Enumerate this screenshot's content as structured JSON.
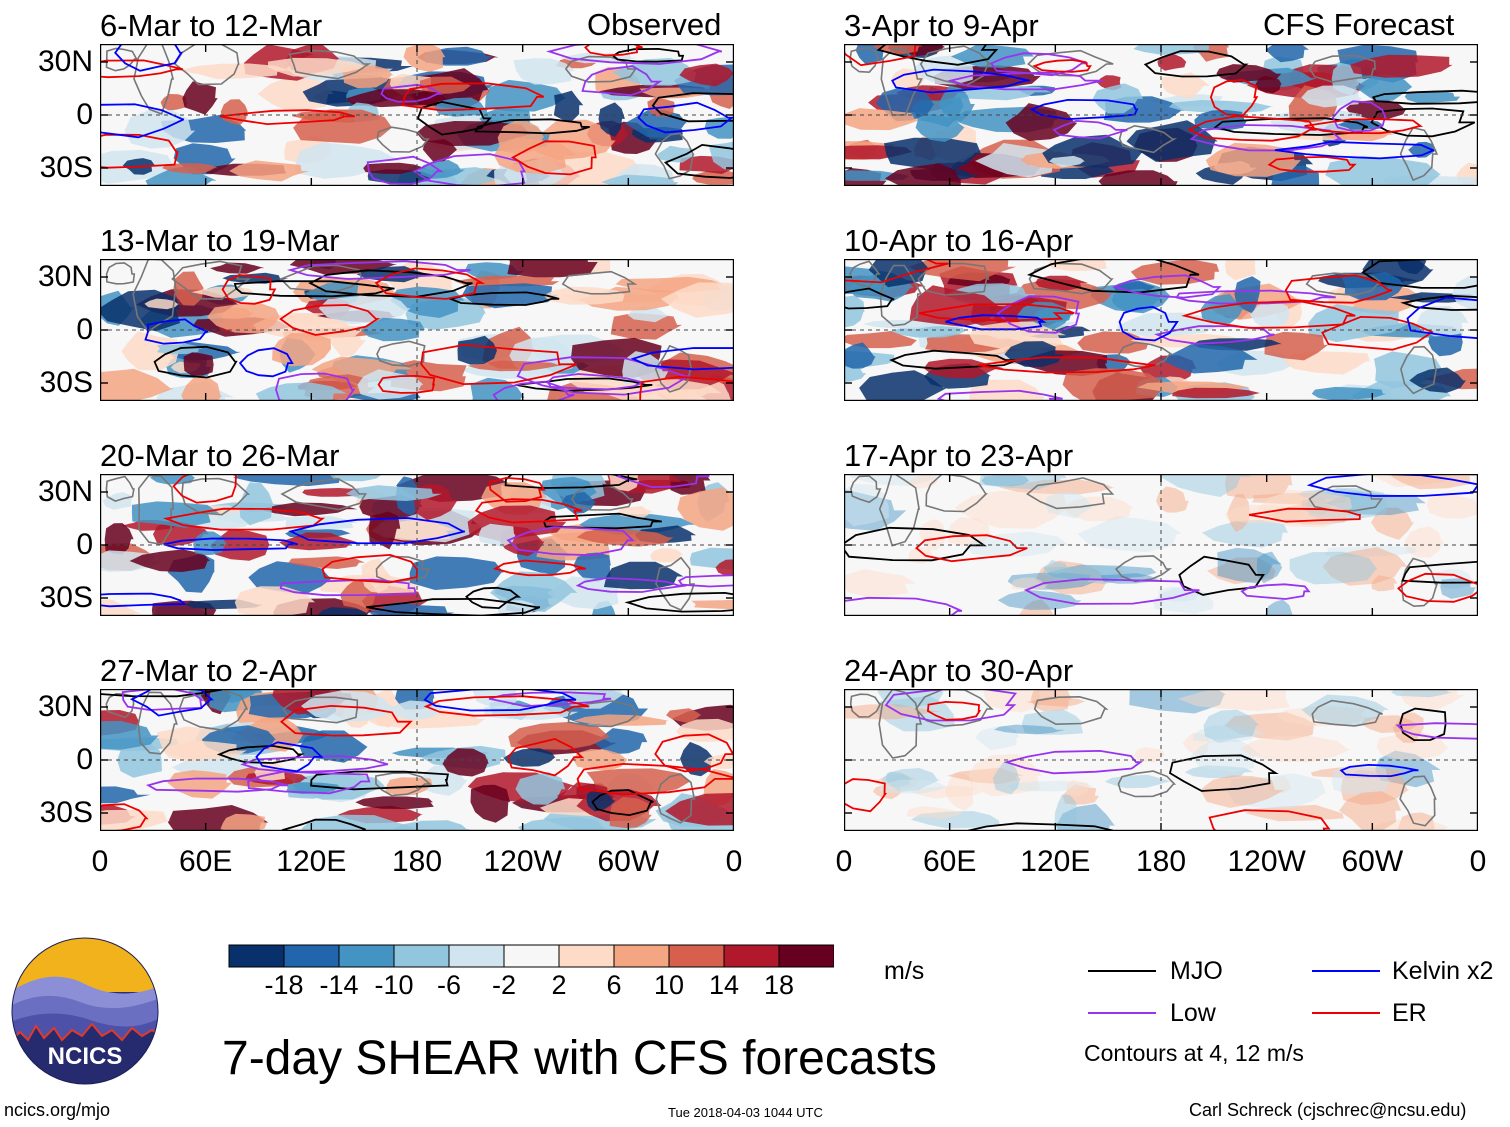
{
  "panel_headers": {
    "observed": "Observed",
    "forecast": "CFS Forecast"
  },
  "panels": [
    {
      "id": "obs1",
      "period": "6-Mar to 12-Mar",
      "source": "Observed"
    },
    {
      "id": "obs2",
      "period": "13-Mar to 19-Mar",
      "source": "Observed"
    },
    {
      "id": "obs3",
      "period": "20-Mar to 26-Mar",
      "source": "Observed"
    },
    {
      "id": "obs4",
      "period": "27-Mar to 2-Apr",
      "source": "Observed"
    },
    {
      "id": "fc1",
      "period": "3-Apr to 9-Apr",
      "source": "CFS Forecast"
    },
    {
      "id": "fc2",
      "period": "10-Apr to 16-Apr",
      "source": "CFS Forecast"
    },
    {
      "id": "fc3",
      "period": "17-Apr to 23-Apr",
      "source": "CFS Forecast"
    },
    {
      "id": "fc4",
      "period": "24-Apr to 30-Apr",
      "source": "CFS Forecast"
    }
  ],
  "latitude_labels": [
    "30N",
    "0",
    "30S"
  ],
  "longitude_labels": [
    "0",
    "60E",
    "120E",
    "180",
    "120W",
    "60W",
    "0"
  ],
  "colorbar": {
    "tick_labels": [
      "-18",
      "-14",
      "-10",
      "-6",
      "-2",
      "2",
      "6",
      "10",
      "14",
      "18"
    ],
    "colors": [
      "#08306b",
      "#2166ac",
      "#4393c3",
      "#92c5de",
      "#d1e5f0",
      "#f7f7f7",
      "#fddbc7",
      "#f4a582",
      "#d6604d",
      "#b2182b",
      "#67001f"
    ],
    "units": "m/s"
  },
  "legend": {
    "items": [
      {
        "label": "MJO",
        "color": "#000000"
      },
      {
        "label": "Kelvin x2",
        "color": "#0000ff"
      },
      {
        "label": "Low",
        "color": "#9933ee"
      },
      {
        "label": "ER",
        "color": "#ee0000"
      }
    ],
    "note": "Contours at 4, 12 m/s"
  },
  "logo": {
    "text": "NCICS"
  },
  "main_title": "7-day SHEAR with CFS forecasts",
  "footer": {
    "url": "ncics.org/mjo",
    "timestamp": "Tue 2018-04-03 1044 UTC",
    "credit": "Carl Schreck (cjschrec@ncsu.edu)"
  }
}
